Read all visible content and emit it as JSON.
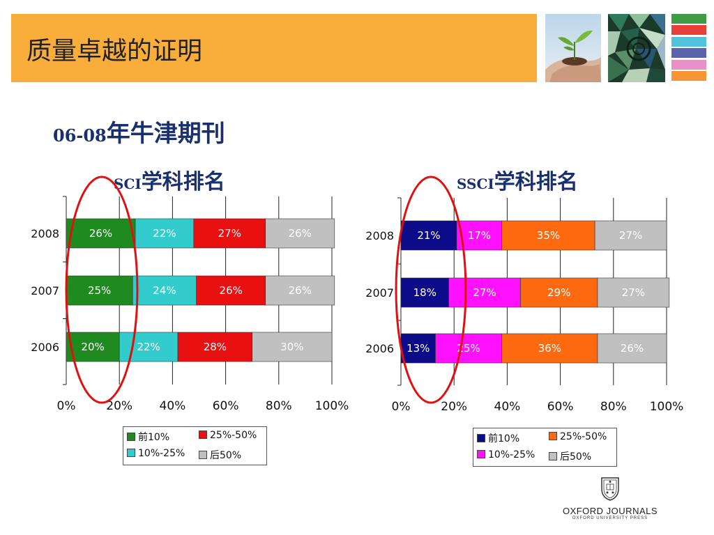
{
  "header": {
    "title": "质量卓越的证明",
    "stripe_colors": [
      "#3f9c45",
      "#e8403a",
      "#4fc3de",
      "#5b63ad",
      "#e690c6",
      "#f79433"
    ]
  },
  "subtitle": {
    "prefix": "06-08",
    "text": "年牛津期刊"
  },
  "chart_data": [
    {
      "type": "bar",
      "orientation": "horizontal",
      "stacked": true,
      "title_prefix": "SCI",
      "title_text": "学科排名",
      "categories": [
        "2008",
        "2007",
        "2006"
      ],
      "series": [
        {
          "name": "前10%",
          "color": "#1f8a1f",
          "values": [
            26,
            25,
            20
          ],
          "labels": [
            "26%",
            "25%",
            "20%"
          ]
        },
        {
          "name": "10%-25%",
          "color": "#33cccc",
          "values": [
            22,
            24,
            22
          ],
          "labels": [
            "22%",
            "24%",
            "22%"
          ]
        },
        {
          "name": "25%-50%",
          "color": "#e81010",
          "values": [
            27,
            26,
            28
          ],
          "labels": [
            "27%",
            "26%",
            "28%"
          ]
        },
        {
          "name": "后50%",
          "color": "#c0c0c0",
          "values": [
            26,
            26,
            30
          ],
          "labels": [
            "26%",
            "26%",
            "30%"
          ]
        }
      ],
      "xlim": [
        0,
        100
      ],
      "xticks": [
        "0%",
        "20%",
        "40%",
        "60%",
        "80%",
        "100%"
      ],
      "grid": true,
      "legend": "bottom"
    },
    {
      "type": "bar",
      "orientation": "horizontal",
      "stacked": true,
      "title_prefix": "SSCI",
      "title_text": "学科排名",
      "categories": [
        "2008",
        "2007",
        "2006"
      ],
      "series": [
        {
          "name": "前10%",
          "color": "#0c0c8a",
          "values": [
            21,
            18,
            13
          ],
          "labels": [
            "21%",
            "18%",
            "13%"
          ]
        },
        {
          "name": "10%-25%",
          "color": "#ff10ff",
          "values": [
            17,
            27,
            25
          ],
          "labels": [
            "17%",
            "27%",
            "25%"
          ]
        },
        {
          "name": "25%-50%",
          "color": "#ff6a10",
          "values": [
            35,
            29,
            36
          ],
          "labels": [
            "35%",
            "29%",
            "36%"
          ]
        },
        {
          "name": "后50%",
          "color": "#c0c0c0",
          "values": [
            27,
            27,
            26
          ],
          "labels": [
            "27%",
            "27%",
            "26%"
          ]
        }
      ],
      "xlim": [
        0,
        100
      ],
      "xticks": [
        "0%",
        "20%",
        "40%",
        "60%",
        "80%",
        "100%"
      ],
      "grid": true,
      "legend": "bottom"
    }
  ],
  "logo": {
    "name": "OXFORD JOURNALS",
    "sub": "OXFORD UNIVERSITY PRESS"
  },
  "highlight_color": "#e01010"
}
